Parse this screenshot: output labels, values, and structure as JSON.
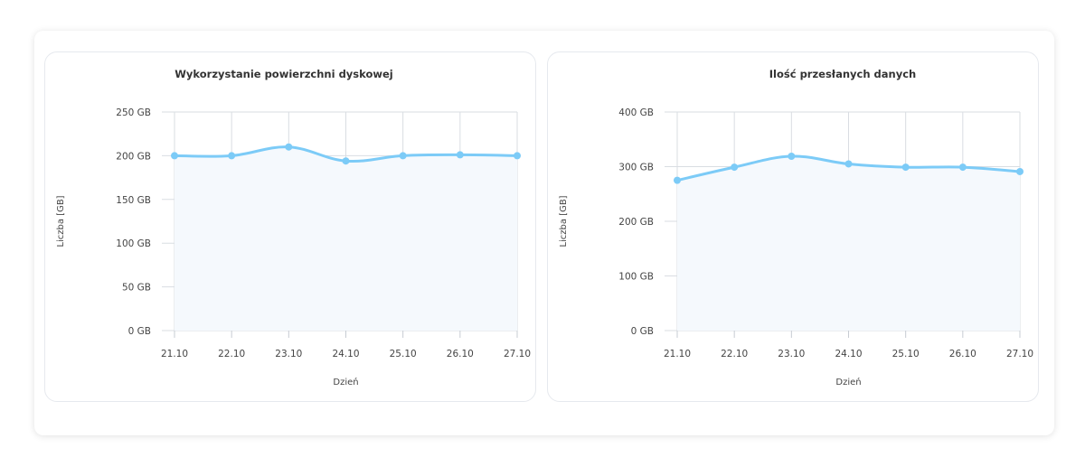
{
  "colors": {
    "series": "#7ccbf7",
    "area": "#f5f9fd",
    "grid": "#d9dde2"
  },
  "chart_data": [
    {
      "type": "area",
      "title": "Wykorzystanie powierzchni dyskowej",
      "xlabel": "Dzień",
      "ylabel": "Liczba [GB]",
      "categories": [
        "21.10",
        "22.10",
        "23.10",
        "24.10",
        "25.10",
        "26.10",
        "27.10"
      ],
      "series": [
        {
          "values": [
            200,
            200,
            210,
            194,
            200,
            201,
            200
          ]
        }
      ],
      "yticks": [
        0,
        50,
        100,
        150,
        200,
        250
      ],
      "ytick_labels": [
        "0 GB",
        "50 GB",
        "100 GB",
        "150 GB",
        "200 GB",
        "250 GB"
      ],
      "ylim": [
        0,
        250
      ],
      "grid": true,
      "curve": "smooth"
    },
    {
      "type": "area",
      "title": "Ilość przesłanych danych",
      "xlabel": "Dzień",
      "ylabel": "Liczba [GB]",
      "categories": [
        "21.10",
        "22.10",
        "23.10",
        "24.10",
        "25.10",
        "26.10",
        "27.10"
      ],
      "series": [
        {
          "values": [
            275,
            299,
            319,
            305,
            299,
            299,
            291
          ]
        }
      ],
      "yticks": [
        0,
        100,
        200,
        300,
        400
      ],
      "ytick_labels": [
        "0 GB",
        "100 GB",
        "200 GB",
        "300 GB",
        "400 GB"
      ],
      "ylim": [
        0,
        400
      ],
      "grid": true,
      "curve": "smooth"
    }
  ]
}
